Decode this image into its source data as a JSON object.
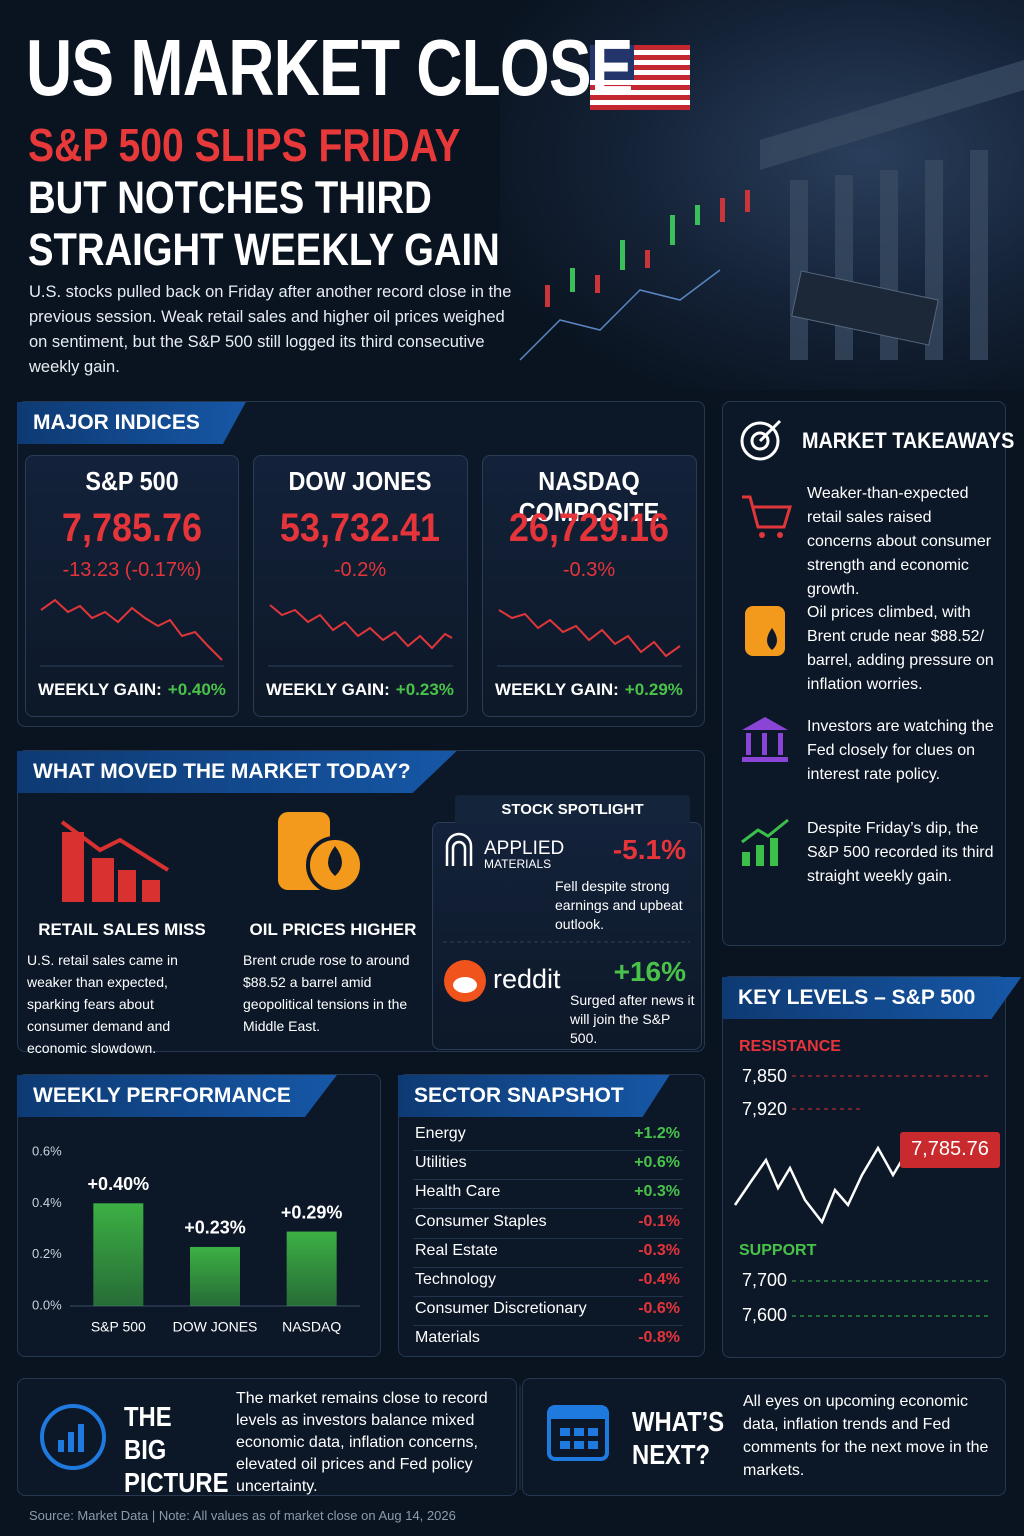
{
  "header": {
    "title": "US MARKET CLOSE",
    "headline_1": "S&P 500 SLIPS FRIDAY",
    "headline_2": "BUT NOTCHES THIRD STRAIGHT WEEKLY GAIN",
    "summary": "U.S. stocks pulled back on Friday after another record close in the previous session. Weak retail sales and higher oil prices weighed on sentiment, but the S&P 500 still logged its third consecutive weekly gain."
  },
  "indices": {
    "title": "MAJOR INDICES",
    "items": [
      {
        "name": "S&P 500",
        "value": "7,785.76",
        "change": "-13.23 (-0.17%)",
        "weekly_label": "WEEKLY GAIN:",
        "weekly": "+0.40%"
      },
      {
        "name": "DOW JONES",
        "value": "53,732.41",
        "change": "-0.2%",
        "weekly_label": "WEEKLY GAIN:",
        "weekly": "+0.23%"
      },
      {
        "name": "NASDAQ COMPOSITE",
        "value": "26,729.16",
        "change": "-0.3%",
        "weekly_label": "WEEKLY GAIN:",
        "weekly": "+0.29%"
      }
    ]
  },
  "takeaways": {
    "title": "MARKET TAKEAWAYS",
    "items": [
      "Weaker-than-expected retail sales raised concerns about consumer strength and economic growth.",
      "Oil prices climbed, with Brent crude near $88.52/ barrel, adding pressure on inflation worries.",
      "Investors are watching the Fed closely for clues on interest rate policy.",
      "Despite Friday’s dip, the S&P 500 recorded its third straight weekly gain."
    ]
  },
  "drivers": {
    "title": "WHAT MOVED THE MARKET TODAY?",
    "items": [
      {
        "title": "RETAIL SALES MISS",
        "text": "U.S. retail sales came in weaker than expected, sparking fears about consumer demand and economic slowdown."
      },
      {
        "title": "OIL PRICES HIGHER",
        "text": "Brent crude rose to around $88.52 a barrel amid geopolitical tensions in the Middle East."
      }
    ]
  },
  "spotlight": {
    "title": "STOCK SPOTLIGHT",
    "items": [
      {
        "logo": [
          "APPLIED",
          "MATERIALS"
        ],
        "change": "-5.1%",
        "text": "Fell despite strong earnings and upbeat outlook."
      },
      {
        "logo": [
          "reddit"
        ],
        "change": "+16%",
        "text": "Surged after news it will join the S&P 500."
      }
    ]
  },
  "key_levels": {
    "title": "KEY LEVELS – S&P 500",
    "resistance_label": "RESISTANCE",
    "resistance": [
      "7,850",
      "7,920"
    ],
    "current": "7,785.76",
    "support_label": "SUPPORT",
    "support": [
      "7,700",
      "7,600"
    ]
  },
  "sectors": {
    "title": "SECTOR SNAPSHOT",
    "rows": [
      [
        "Energy",
        "+1.2%"
      ],
      [
        "Utilities",
        "+0.6%"
      ],
      [
        "Health Care",
        "+0.3%"
      ],
      [
        "Consumer Staples",
        "-0.1%"
      ],
      [
        "Real Estate",
        "-0.3%"
      ],
      [
        "Technology",
        "-0.4%"
      ],
      [
        "Consumer Discretionary",
        "-0.6%"
      ],
      [
        "Materials",
        "-0.8%"
      ]
    ]
  },
  "chart_data": {
    "type": "bar",
    "title": "WEEKLY PERFORMANCE",
    "categories": [
      "S&P 500",
      "DOW JONES",
      "NASDAQ"
    ],
    "values": [
      0.4,
      0.23,
      0.29
    ],
    "value_labels": [
      "+0.40%",
      "+0.23%",
      "+0.29%"
    ],
    "color": "#3cb043",
    "ylim": [
      0,
      0.6
    ],
    "yticks": [
      {
        "value": 0,
        "label": "0.0%"
      },
      {
        "value": 0.2,
        "label": "0.2%"
      },
      {
        "value": 0.4,
        "label": "0.4%"
      },
      {
        "value": 0.6,
        "label": "0.6%"
      }
    ]
  },
  "big_picture": {
    "title": "THE BIG PICTURE",
    "text": "The market remains close to record levels as investors balance mixed economic data, inflation concerns, elevated oil prices and Fed policy uncertainty."
  },
  "whats_next": {
    "title": "WHAT’S NEXT?",
    "text": "All eyes on upcoming economic data, inflation trends and Fed comments for the next move in the markets."
  },
  "footer": "Source: Market Data | Note: All values as of market close on Aug 14, 2026"
}
